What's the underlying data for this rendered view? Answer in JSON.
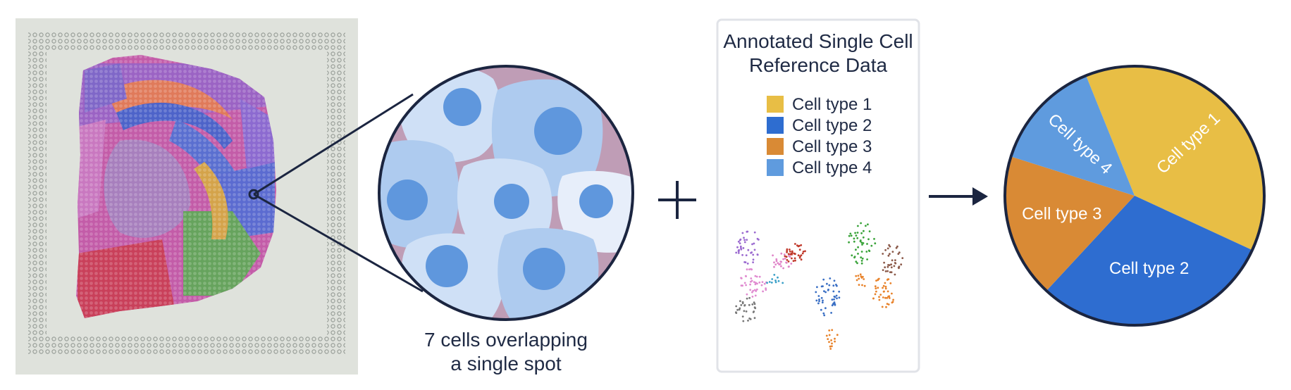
{
  "circle_caption": {
    "line1": "7 cells overlapping",
    "line2": "a single spot"
  },
  "reference_panel": {
    "title_line1": "Annotated Single Cell",
    "title_line2": "Reference Data",
    "legend": [
      {
        "label": "Cell type 1",
        "color": "#E8BE45"
      },
      {
        "label": "Cell type 2",
        "color": "#2E6DD0"
      },
      {
        "label": "Cell type 3",
        "color": "#D98A35"
      },
      {
        "label": "Cell type 4",
        "color": "#5F9BDE"
      }
    ]
  },
  "operators": {
    "plus": "plus-icon",
    "arrow": "arrow-right-icon"
  },
  "chart_data": {
    "type": "pie",
    "slices": [
      {
        "label": "Cell type 1",
        "value": 0.38,
        "color": "#E8BE45"
      },
      {
        "label": "Cell type 2",
        "value": 0.3,
        "color": "#2E6DD0"
      },
      {
        "label": "Cell type 3",
        "value": 0.18,
        "color": "#D98A35"
      },
      {
        "label": "Cell type 4",
        "value": 0.14,
        "color": "#5F9BDE"
      }
    ]
  }
}
